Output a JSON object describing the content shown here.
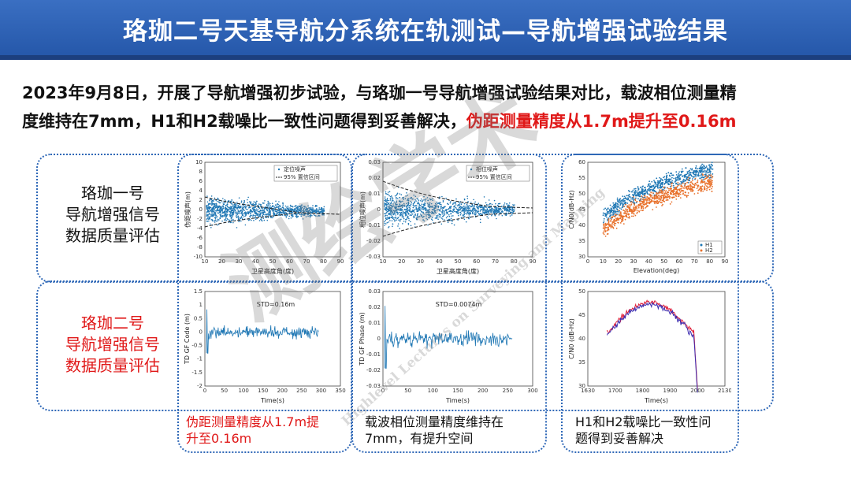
{
  "title": "珞珈二号天基导航分系统在轨测试—导航增强试验结果",
  "intro": {
    "line1": "2023年9月8日，开展了导航增强初步试验，与珞珈一号导航增强试验结果对比，载波相位测量精",
    "line2_prefix": "度维持在7mm，H1和H2载噪比一致性问题得到妥善解决，",
    "line2_highlight": "伪距测量精度从1.7m提升至0.16m"
  },
  "rows": {
    "luojia1": {
      "line1": "珞珈一号",
      "line2": "导航增强信号",
      "line3": "数据质量评估"
    },
    "luojia2": {
      "line1": "珞珈二号",
      "line2": "导航增强信号",
      "line3": "数据质量评估"
    }
  },
  "plots": {
    "p1": {
      "legend1": "定位噪声",
      "legend2": "95% 置信区间",
      "xlabel": "卫星高度角(度)",
      "ylabel": "伪距噪声(m)",
      "xticks": [
        "10",
        "20",
        "30",
        "40",
        "50",
        "60",
        "70",
        "80",
        "90"
      ],
      "yticks": [
        "10",
        "8",
        "6",
        "4",
        "2",
        "0",
        "-2",
        "-4",
        "-6",
        "-8",
        "-10"
      ]
    },
    "p2": {
      "legend1": "相位噪声",
      "legend2": "95% 置信区间",
      "xlabel": "卫星高度角(度)",
      "ylabel": "相位噪声(m)",
      "xticks": [
        "10",
        "20",
        "30",
        "40",
        "50",
        "60",
        "70",
        "80",
        "90"
      ],
      "yticks": [
        "0.03",
        "0.02",
        "0.01",
        "0",
        "-0.01",
        "-0.02",
        "-0.03"
      ]
    },
    "p3": {
      "xlabel": "Elevation(deg)",
      "ylabel": "C/N0(dB-Hz)",
      "legend1": "H1",
      "legend2": "H2",
      "xticks": [
        "0",
        "10",
        "20",
        "30",
        "40",
        "50",
        "60",
        "70",
        "80",
        "90"
      ],
      "yticks": [
        "60",
        "55",
        "50",
        "45",
        "40",
        "35",
        "30"
      ]
    },
    "p4": {
      "std": "STD=0.16m",
      "xlabel": "Time(s)",
      "ylabel": "TD GF Code (m)",
      "xticks": [
        "0",
        "50",
        "100",
        "150",
        "200",
        "250",
        "300",
        "350"
      ],
      "yticks": [
        "1.5",
        "1",
        "0.5",
        "0",
        "-0.5",
        "-1",
        "-1.5",
        "-2"
      ]
    },
    "p5": {
      "std": "STD=0.0074m",
      "xlabel": "Time(s)",
      "ylabel": "TD GF Phase (m)",
      "xticks": [
        "0",
        "50",
        "100",
        "150",
        "200",
        "250",
        "300"
      ],
      "yticks": [
        "0.03",
        "0.02",
        "0.01",
        "0",
        "-0.01",
        "-0.02",
        "-0.03"
      ]
    },
    "p6": {
      "xlabel": "Time(s)",
      "ylabel": "C/N0 (dB-Hz)",
      "xticks": [
        "1630",
        "1700",
        "1800",
        "1900",
        "2000",
        "2130"
      ],
      "yticks": [
        "50",
        "45",
        "40",
        "35",
        "30"
      ]
    }
  },
  "captions": {
    "c1_line1": "伪距测量精度从1.7m提",
    "c1_line2": "升至0.16m",
    "c2_line1": "载波相位测量精度维持在",
    "c2_line2": "7mm，有提升空间",
    "c3_line1": "H1和H2载噪比一致性问",
    "c3_line2": "题得到妥善解决"
  },
  "watermark": {
    "main": "测绘学术",
    "sub": "Highlevel Lectures on Surveying and Mapping"
  },
  "colors": {
    "title_bg": "#2456a8",
    "accent_red": "#e01818",
    "box_border": "#2f68b7",
    "scatter_blue": "#1f77b4",
    "scatter_orange": "#e8702a",
    "line_red": "#e0203a"
  }
}
